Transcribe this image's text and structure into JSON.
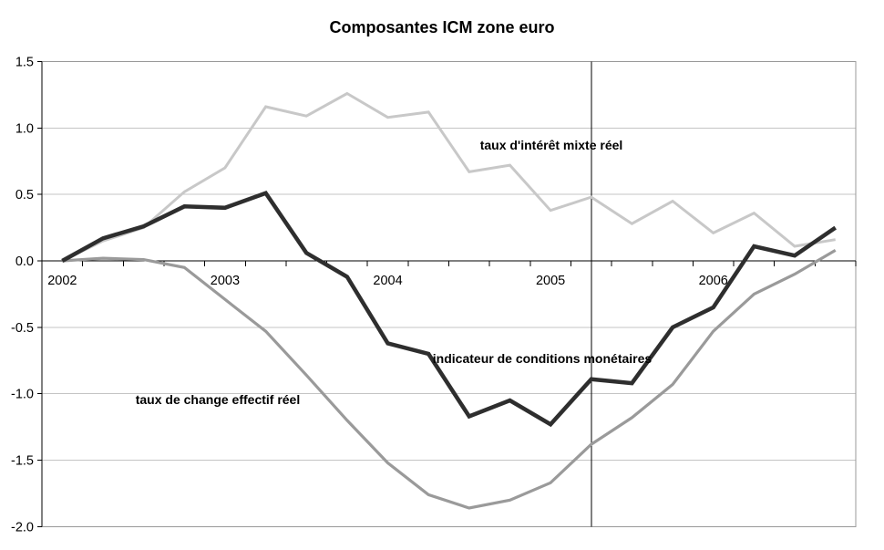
{
  "title": "Composantes ICM zone euro",
  "chart_data": {
    "type": "line",
    "title": "Composantes ICM zone euro",
    "x_unit": "quarterly (4 points per year, 2002Q1–2006Q4)",
    "n_points": 20,
    "x_year_labels": [
      {
        "label": "2002",
        "index": 0
      },
      {
        "label": "2003",
        "index": 4
      },
      {
        "label": "2004",
        "index": 8
      },
      {
        "label": "2005",
        "index": 12
      },
      {
        "label": "2006",
        "index": 16
      }
    ],
    "y_ticks": [
      "1.5",
      "1.0",
      "0.5",
      "0.0",
      "-0.5",
      "-1.0",
      "-1.5",
      "-2.0"
    ],
    "ylim": [
      -2.0,
      1.5
    ],
    "grid": "horizontal",
    "legend_position": "none (inline text annotations)",
    "vertical_marker_index": 13,
    "series": [
      {
        "name": "taux d'intérêt mixte réel",
        "color": "#c8c8c8",
        "stroke_width": 3,
        "values": [
          0.0,
          0.15,
          0.25,
          0.52,
          0.7,
          1.16,
          1.09,
          1.26,
          1.08,
          1.12,
          0.67,
          0.72,
          0.38,
          0.48,
          0.28,
          0.45,
          0.21,
          0.36,
          0.11,
          0.16
        ]
      },
      {
        "name": "taux de change effectif réel",
        "color": "#9a9a9a",
        "stroke_width": 3.2,
        "values": [
          0.0,
          0.02,
          0.01,
          -0.05,
          -0.29,
          -0.53,
          -0.86,
          -1.2,
          -1.52,
          -1.76,
          -1.86,
          -1.8,
          -1.67,
          -1.38,
          -1.18,
          -0.93,
          -0.53,
          -0.25,
          -0.1,
          0.08
        ]
      },
      {
        "name": "indicateur de conditions monétaires",
        "color": "#2e2e2e",
        "stroke_width": 4.5,
        "values": [
          0.0,
          0.17,
          0.26,
          0.41,
          0.4,
          0.51,
          0.06,
          -0.12,
          -0.62,
          -0.7,
          -1.17,
          -1.05,
          -1.23,
          -0.89,
          -0.92,
          -0.5,
          -0.35,
          0.11,
          0.04,
          0.25
        ]
      }
    ],
    "annotations": [
      {
        "text": "taux d'intérêt mixte réel",
        "x": 605,
        "y": 159
      },
      {
        "text": "indicateur de conditions monétaires",
        "x": 595,
        "y": 393
      },
      {
        "text": "taux de change effectif réel",
        "x": 239,
        "y": 438
      }
    ],
    "colors": {
      "grid": "#c4c4c4",
      "border": "#999999",
      "zero_axis": "#000000",
      "vertical_marker": "#000000",
      "text": "#000000"
    }
  }
}
